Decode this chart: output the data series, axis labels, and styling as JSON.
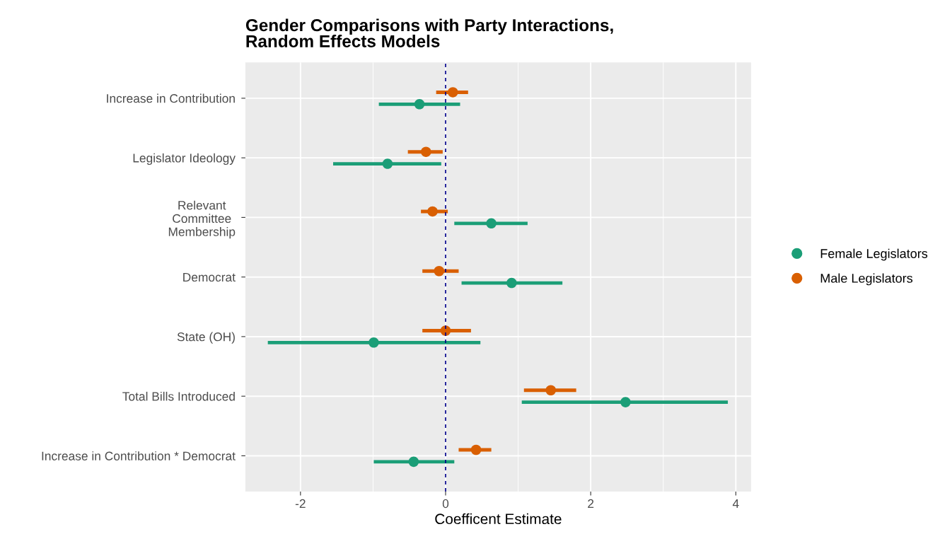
{
  "chart_data": {
    "type": "scatter",
    "orientation": "horizontal",
    "title": "Gender Comparisons with Party Interactions,\nRandom Effects Models",
    "xlabel": "Coefficent Estimate",
    "categories": [
      "Increase in Contribution",
      "Legislator Ideology",
      "Relevant\nCommittee\nMembership",
      "Democrat",
      "State (OH)",
      "Total Bills Introduced",
      "Increase in Contribution * Democrat"
    ],
    "series": [
      {
        "name": "Female Legislators",
        "color": "#1b9e77",
        "values": [
          -0.36,
          -0.8,
          0.63,
          0.91,
          -0.99,
          2.48,
          -0.44
        ],
        "errors": [
          [
            -0.92,
            0.2
          ],
          [
            -1.55,
            -0.06
          ],
          [
            0.12,
            1.13
          ],
          [
            0.22,
            1.61
          ],
          [
            -2.45,
            0.48
          ],
          [
            1.05,
            3.89
          ],
          [
            -0.99,
            0.12
          ]
        ]
      },
      {
        "name": "Male Legislators",
        "color": "#d95f02",
        "values": [
          0.1,
          -0.27,
          -0.18,
          -0.09,
          0.0,
          1.45,
          0.42
        ],
        "errors": [
          [
            -0.13,
            0.31
          ],
          [
            -0.52,
            -0.04
          ],
          [
            -0.34,
            0.03
          ],
          [
            -0.32,
            0.18
          ],
          [
            -0.32,
            0.35
          ],
          [
            1.08,
            1.8
          ],
          [
            0.18,
            0.63
          ]
        ]
      }
    ],
    "xlim": [
      -2.76,
      4.21
    ],
    "xticks": [
      -2,
      0,
      2,
      4
    ],
    "grid": true,
    "legend": "right",
    "marker": "circle",
    "ref_lines": [
      {
        "axis": "x",
        "value": 0,
        "color": "#00008b",
        "line_style": "dashed"
      }
    ]
  }
}
